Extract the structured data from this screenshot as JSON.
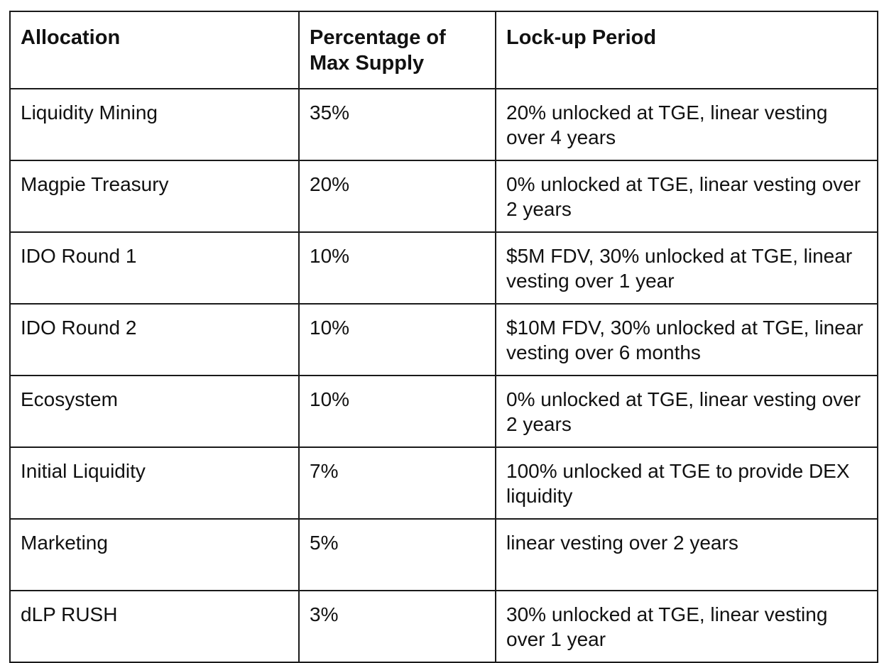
{
  "table": {
    "headers": [
      "Allocation",
      "Percentage of Max Supply",
      "Lock-up Period"
    ],
    "rows": [
      [
        "Liquidity Mining",
        "35%",
        "20% unlocked at TGE, linear vesting over 4 years"
      ],
      [
        "Magpie Treasury",
        "20%",
        "0% unlocked at TGE, linear vesting over 2 years"
      ],
      [
        "IDO Round 1",
        "10%",
        "$5M FDV, 30% unlocked at TGE, linear vesting over 1 year"
      ],
      [
        "IDO Round 2",
        "10%",
        "$10M FDV, 30% unlocked at TGE, linear vesting over 6 months"
      ],
      [
        "Ecosystem",
        "10%",
        "0% unlocked at TGE, linear vesting over 2 years"
      ],
      [
        "Initial Liquidity",
        "7%",
        "100% unlocked at TGE to provide DEX liquidity"
      ],
      [
        "Marketing",
        "5%",
        "linear vesting over 2 years"
      ],
      [
        "dLP RUSH",
        "3%",
        "30% unlocked at TGE, linear vesting over 1 year"
      ]
    ]
  }
}
